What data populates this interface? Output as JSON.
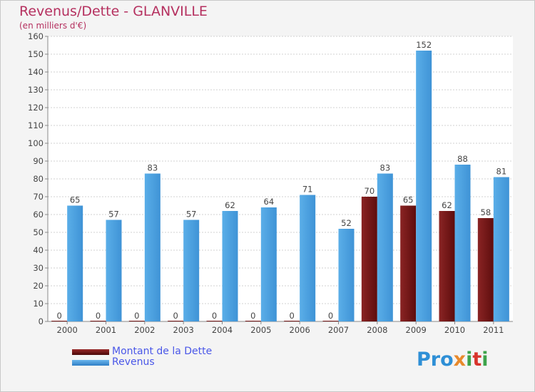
{
  "title": "Revenus/Dette - GLANVILLE",
  "subtitle": "(en milliers d'€)",
  "logo": {
    "p": "Pro",
    "x": "x",
    "i1": "i",
    "t": "t",
    "i2": "i"
  },
  "colors": {
    "title": "#b5305f",
    "dette": "#7a1a1a",
    "revenus": "#4ea3e0",
    "legend_text": "#4a57e8"
  },
  "chart_data": {
    "type": "bar",
    "categories": [
      "2000",
      "2001",
      "2002",
      "2003",
      "2004",
      "2005",
      "2006",
      "2007",
      "2008",
      "2009",
      "2010",
      "2011"
    ],
    "series": [
      {
        "name": "Montant de la Dette",
        "values": [
          0,
          0,
          0,
          0,
          0,
          0,
          0,
          0,
          70,
          65,
          62,
          58
        ]
      },
      {
        "name": "Revenus",
        "values": [
          65,
          57,
          83,
          57,
          62,
          64,
          71,
          52,
          83,
          152,
          88,
          81
        ]
      }
    ],
    "ylim": [
      0,
      160
    ],
    "yticks": [
      0,
      10,
      20,
      30,
      40,
      50,
      60,
      70,
      80,
      90,
      100,
      110,
      120,
      130,
      140,
      150,
      160
    ],
    "grid": true,
    "legend_position": "bottom-left"
  }
}
